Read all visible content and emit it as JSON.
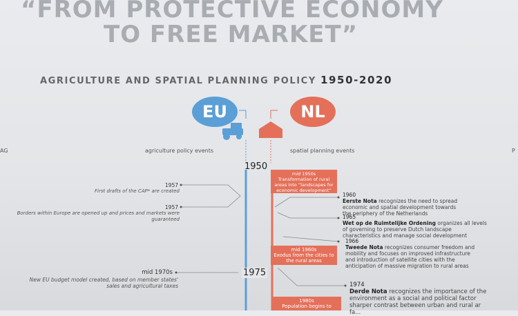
{
  "title": {
    "line1": "“FROM PROTECTIVE ECONOMY",
    "line2": "TO FREE MARKET”"
  },
  "subtitle": {
    "text": "AGRICULTURE AND SPATIAL PLANNING POLICY",
    "years": "1950-2020"
  },
  "badges": {
    "eu": "EU",
    "nl": "NL"
  },
  "columns": {
    "left_edge": "AG",
    "agriculture": "agriculture policy events",
    "spatial": "spatial planning events",
    "right_edge": "P"
  },
  "timeline": {
    "year_1950": "1950",
    "year_1975": "1975"
  },
  "eu_events": [
    {
      "year": "1957",
      "text": "First drafts of the CAP* are created"
    },
    {
      "year": "1957",
      "text": "Borders within Europe are opened up and prices and markets were guaranteed"
    },
    {
      "year": "mid 1970s",
      "text": "New EU budget model created, based on member states' sales and agricultural taxes"
    }
  ],
  "nl_boxes": [
    {
      "title": "mid 1950s",
      "text": "Transformation of rural areas into “landscapes for economic development”"
    },
    {
      "title": "mid 1960s",
      "text": "Exodus from the cities to the rural areas"
    },
    {
      "title": "1980s",
      "text": "Population begins to"
    }
  ],
  "nl_events": [
    {
      "year": "1960",
      "name": "Eerste Nota",
      "text": "recognizes the need to spread",
      "more": [
        "economic and spatial development towards",
        "the periphery of the Netherlands"
      ]
    },
    {
      "year": "1965",
      "name": "Wet op de Ruimtelijke Ordening",
      "text": "organizes all levels",
      "more": [
        "of governing to preserve Dutch landscape",
        "characteristics and manage social development"
      ]
    },
    {
      "year": "1966",
      "name": "Tweede Nota",
      "text": "recognizes consumer freedom and",
      "more": [
        "mobility and focuses on improved infrastructure",
        "and introduction of satellite cities with the",
        "anticipation of massive migration to rural areas"
      ]
    },
    {
      "year": "1974",
      "name": "Derde Nota",
      "text": "recognizes the importance of the",
      "more": [
        "environment as a social and political factor",
        "sharper contrast between urban and rural ar",
        "fa..."
      ]
    }
  ],
  "colors": {
    "eu": "#5b9fd6",
    "nl": "#e4705a",
    "headline": "#a9adb2"
  }
}
